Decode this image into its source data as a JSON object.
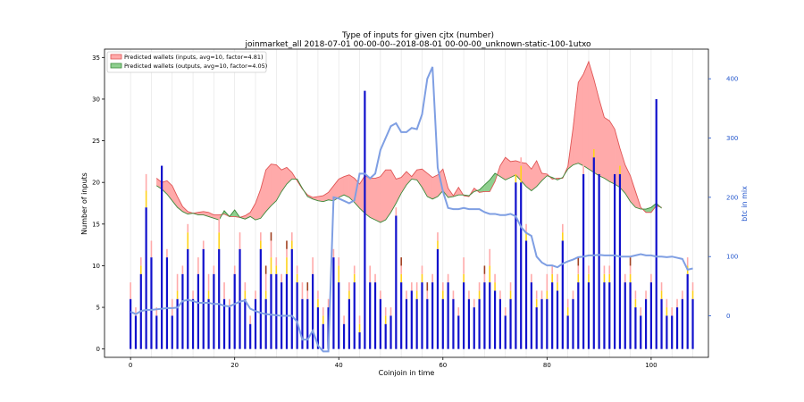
{
  "chart_data": {
    "type": "bar",
    "title": "Type of inputs for given cjtx (number)",
    "subtitle": "joinmarket_all 2018-07-01 00-00-00--2018-08-01 00-00-00_unknown-static-100-1utxo",
    "xlabel": "Coinjoin in time",
    "ylabel": "Number of inputs",
    "y2label": "btc in mix",
    "xlim": [
      -5,
      111
    ],
    "ylim": [
      -1,
      36
    ],
    "y2lim": [
      -70,
      450
    ],
    "xticks": [
      "0",
      "20",
      "40",
      "60",
      "80",
      "100"
    ],
    "yticks": [
      "0",
      "5",
      "10",
      "15",
      "20",
      "25",
      "30",
      "35"
    ],
    "y2ticks": [
      "0",
      "100",
      "200",
      "300",
      "400"
    ],
    "grid": "vertical",
    "legend_position": "top-left",
    "colors": {
      "bars": "#1010cc",
      "fresh": "#ffd21a",
      "remix": "#ffaaaa",
      "old": "#a04020",
      "inputs_fill": "#ffaaaa",
      "inputs_line": "#e05555",
      "outputs_fill": "#8fcf8f",
      "outputs_line": "#3a8a3a",
      "btc_line": "#7f9fe3"
    },
    "legend": [
      "Predicted wallets (inputs, avg=10, factor=4.81)",
      "Predicted wallets (outputs, avg=10, factor=4.05)"
    ],
    "x": [
      0,
      1,
      2,
      3,
      4,
      5,
      6,
      7,
      8,
      9,
      10,
      11,
      12,
      13,
      14,
      15,
      16,
      17,
      18,
      19,
      20,
      21,
      22,
      23,
      24,
      25,
      26,
      27,
      28,
      29,
      30,
      31,
      32,
      33,
      34,
      35,
      36,
      37,
      38,
      39,
      40,
      41,
      42,
      43,
      44,
      45,
      46,
      47,
      48,
      49,
      50,
      51,
      52,
      53,
      54,
      55,
      56,
      57,
      58,
      59,
      60,
      61,
      62,
      63,
      64,
      65,
      66,
      67,
      68,
      69,
      70,
      71,
      72,
      73,
      74,
      75,
      76,
      77,
      78,
      79,
      80,
      81,
      82,
      83,
      84,
      85,
      86,
      87,
      88,
      89,
      90,
      91,
      92,
      93,
      94,
      95,
      96,
      97,
      98,
      99,
      100,
      101,
      102,
      103,
      104,
      105,
      106,
      107,
      108
    ],
    "bars": [
      6,
      4,
      9,
      17,
      11,
      4,
      22,
      11,
      4,
      6,
      9,
      12,
      6,
      9,
      12,
      6,
      9,
      12,
      6,
      5,
      9,
      12,
      6,
      3,
      6,
      12,
      6,
      9,
      9,
      8,
      9,
      12,
      8,
      6,
      6,
      9,
      5,
      3,
      5,
      11,
      8,
      3,
      6,
      8,
      2,
      31,
      8,
      8,
      6,
      3,
      4,
      16,
      8,
      6,
      7,
      6,
      8,
      6,
      8,
      12,
      6,
      8,
      6,
      4,
      8,
      6,
      5,
      6,
      8,
      8,
      7,
      6,
      4,
      6,
      20,
      20,
      13,
      8,
      5,
      6,
      6,
      8,
      7,
      13,
      4,
      6,
      8,
      21,
      8,
      23,
      21,
      8,
      8,
      21,
      21,
      8,
      8,
      5,
      4,
      6,
      8,
      30,
      6,
      4,
      4,
      5,
      6,
      9,
      6
    ],
    "fresh": [
      0,
      0,
      1,
      2,
      0,
      0,
      0,
      0,
      0,
      1,
      0,
      2,
      0,
      0,
      0,
      1,
      0,
      2,
      0,
      0,
      0,
      0,
      1,
      0,
      0,
      1,
      1,
      2,
      1,
      0,
      2,
      1,
      1,
      0,
      0,
      0,
      1,
      1,
      0,
      0,
      2,
      0,
      1,
      1,
      1,
      0,
      0,
      0,
      0,
      1,
      0,
      0,
      1,
      0,
      0,
      1,
      1,
      0,
      0,
      1,
      1,
      0,
      0,
      0,
      1,
      0,
      0,
      1,
      0,
      2,
      1,
      0,
      0,
      1,
      1,
      2,
      1,
      0,
      1,
      0,
      1,
      1,
      1,
      1,
      1,
      0,
      1,
      0,
      1,
      1,
      0,
      1,
      1,
      0,
      1,
      0,
      1,
      1,
      0,
      0,
      0,
      0,
      1,
      1,
      0,
      0,
      0,
      1,
      1
    ],
    "remix": [
      2,
      1,
      1,
      2,
      2,
      1,
      0,
      1,
      2,
      2,
      1,
      1,
      1,
      2,
      1,
      2,
      1,
      2,
      2,
      1,
      1,
      2,
      1,
      1,
      1,
      1,
      2,
      2,
      1,
      1,
      1,
      1,
      1,
      2,
      1,
      2,
      1,
      1,
      1,
      1,
      1,
      1,
      1,
      1,
      1,
      0,
      2,
      1,
      1,
      1,
      1,
      1,
      1,
      1,
      1,
      1,
      1,
      1,
      1,
      1,
      1,
      1,
      1,
      1,
      2,
      1,
      1,
      1,
      1,
      2,
      1,
      1,
      1,
      1,
      1,
      1,
      1,
      1,
      1,
      1,
      2,
      1,
      1,
      1,
      1,
      1,
      1,
      2,
      1,
      2,
      2,
      1,
      1,
      1,
      1,
      1,
      1,
      1,
      1,
      1,
      1,
      0,
      1,
      1,
      1,
      1,
      1,
      1,
      1
    ],
    "old": [
      0,
      0,
      0,
      0,
      0,
      0,
      0,
      0,
      0,
      0,
      0,
      0,
      0,
      0,
      0,
      0,
      0,
      0,
      0,
      0,
      0,
      0,
      0,
      0,
      0,
      0,
      1,
      1,
      0,
      0,
      1,
      0,
      0,
      0,
      1,
      0,
      0,
      0,
      0,
      0,
      0,
      0,
      0,
      0,
      0,
      0,
      0,
      0,
      0,
      0,
      0,
      0,
      1,
      0,
      0,
      0,
      0,
      1,
      0,
      0,
      0,
      0,
      0,
      0,
      0,
      0,
      0,
      0,
      1,
      0,
      0,
      0,
      0,
      0,
      0,
      0,
      0,
      0,
      0,
      0,
      0,
      0,
      0,
      0,
      0,
      0,
      1,
      0,
      0,
      0,
      0,
      0,
      0,
      0,
      0,
      0,
      1,
      0,
      0,
      0,
      0,
      0,
      0,
      0,
      0,
      0,
      0,
      0,
      0
    ],
    "band_x": [
      5,
      6,
      7,
      8,
      9,
      10,
      11,
      12,
      13,
      14,
      15,
      16,
      17,
      18,
      19,
      20,
      21,
      22,
      23,
      24,
      25,
      26,
      27,
      28,
      29,
      30,
      31,
      32,
      33,
      34,
      35,
      36,
      37,
      38,
      39,
      40,
      41,
      42,
      43,
      44,
      45,
      46,
      47,
      48,
      49,
      50,
      51,
      52,
      53,
      54,
      55,
      56,
      57,
      58,
      59,
      60,
      61,
      62,
      63,
      64,
      65,
      66,
      67,
      68,
      69,
      70,
      71,
      72,
      73,
      74,
      75,
      76,
      77,
      78,
      79,
      80,
      81,
      82,
      83,
      84,
      85,
      86,
      87,
      88,
      89,
      90,
      91,
      92,
      93,
      94,
      95,
      96,
      97,
      98,
      99,
      100,
      101,
      102
    ],
    "inputs_band": [
      20.5,
      20.0,
      20.2,
      19.6,
      18.3,
      17.1,
      16.5,
      16.3,
      16.4,
      16.5,
      16.4,
      16.1,
      16.1,
      16.2,
      15.9,
      15.9,
      15.8,
      16.0,
      16.4,
      17.5,
      19.2,
      21.5,
      22.2,
      22.1,
      21.5,
      21.8,
      21.2,
      20.2,
      19.2,
      18.5,
      18.2,
      18.3,
      18.4,
      18.8,
      19.6,
      20.4,
      20.7,
      20.9,
      20.5,
      19.8,
      20.8,
      20.5,
      20.5,
      20.7,
      21.5,
      21.5,
      20.4,
      20.6,
      21.3,
      20.7,
      21.5,
      21.6,
      21.1,
      20.6,
      20.9,
      21.6,
      19.3,
      18.4,
      19.4,
      18.4,
      18.3,
      19.3,
      18.8,
      18.9,
      18.9,
      20.1,
      22.0,
      23.0,
      22.5,
      22.6,
      22.4,
      22.3,
      21.6,
      22.6,
      21.1,
      21.0,
      20.4,
      20.5,
      20.5,
      21.9,
      26.5,
      32.0,
      33.0,
      34.5,
      32.4,
      30.0,
      27.8,
      27.4,
      26.4,
      24.1,
      22.1,
      20.8,
      18.9,
      17.0,
      16.4,
      16.4,
      17.2,
      17.0
    ],
    "outputs_band": [
      19.6,
      19.2,
      18.6,
      17.8,
      17.0,
      16.5,
      16.2,
      16.3,
      16.1,
      16.1,
      15.9,
      15.7,
      15.5,
      16.6,
      15.9,
      16.7,
      15.8,
      15.6,
      15.9,
      15.5,
      15.7,
      16.5,
      17.2,
      17.8,
      18.9,
      19.8,
      20.4,
      20.4,
      19.3,
      18.3,
      18.0,
      17.8,
      17.7,
      17.9,
      17.8,
      18.2,
      18.5,
      18.2,
      17.6,
      16.9,
      16.3,
      15.8,
      15.5,
      15.2,
      15.5,
      16.4,
      17.5,
      18.7,
      19.7,
      20.4,
      20.3,
      19.4,
      18.3,
      18.0,
      18.3,
      19.0,
      18.2,
      18.3,
      18.5,
      18.5,
      18.4,
      18.9,
      19.1,
      19.7,
      20.3,
      21.1,
      20.7,
      20.3,
      20.6,
      20.9,
      20.2,
      19.5,
      19.0,
      19.5,
      20.2,
      20.8,
      20.6,
      20.3,
      20.6,
      21.6,
      22.1,
      22.3,
      22.0,
      21.6,
      21.2,
      20.8,
      20.5,
      20.1,
      19.8,
      19.4,
      18.7,
      17.7,
      17.0,
      16.8,
      16.8,
      17.0,
      17.5,
      16.9
    ],
    "btc": [
      7,
      3,
      8,
      10,
      10,
      11,
      12,
      13,
      13,
      14,
      25,
      27,
      25,
      22,
      22,
      22,
      20,
      20,
      17,
      16,
      20,
      24,
      26,
      12,
      8,
      5,
      3,
      2,
      1,
      0,
      0,
      0,
      -10,
      -40,
      -40,
      -25,
      -50,
      -60,
      -60,
      200,
      198,
      194,
      190,
      195,
      240,
      240,
      232,
      240,
      280,
      300,
      320,
      325,
      310,
      310,
      317,
      315,
      340,
      400,
      420,
      250,
      210,
      182,
      180,
      180,
      182,
      180,
      180,
      180,
      175,
      172,
      172,
      170,
      170,
      172,
      168,
      150,
      140,
      135,
      100,
      90,
      85,
      85,
      82,
      88,
      92,
      95,
      99,
      100,
      102,
      102,
      103,
      102,
      102,
      102,
      100,
      100,
      100,
      102,
      104,
      102,
      102,
      100,
      100,
      99,
      100,
      98,
      96,
      78,
      80,
      80,
      75
    ]
  }
}
